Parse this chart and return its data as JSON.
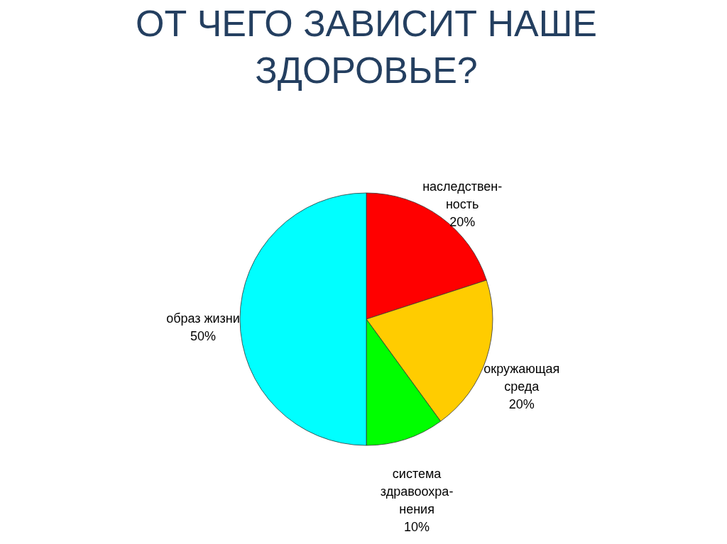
{
  "chart_data": {
    "type": "pie",
    "title": "ОТ ЧЕГО ЗАВИСИТ НАШЕ\nЗДОРОВЬЕ?",
    "categories": [
      "наследствен-\nность",
      "окружающая\nсреда",
      "система\nздравоохра-\nнения",
      "образ жизни"
    ],
    "values": [
      20,
      20,
      10,
      50
    ],
    "value_labels": [
      "20%",
      "20%",
      "10%",
      "50%"
    ],
    "colors": [
      "#ff0000",
      "#ffcc00",
      "#00ff00",
      "#00ffff"
    ]
  }
}
